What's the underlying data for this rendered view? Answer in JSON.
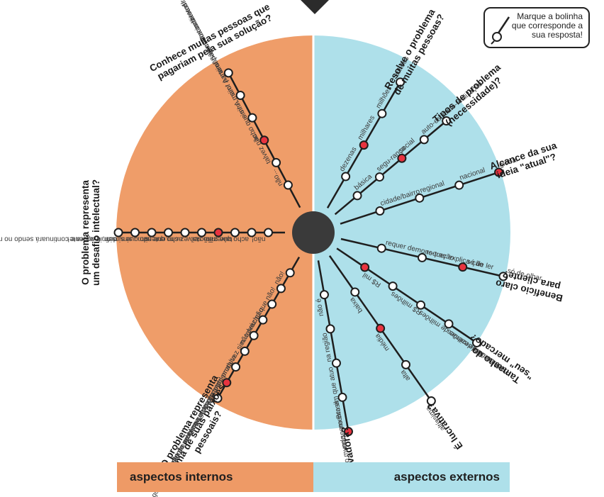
{
  "instruction_box": {
    "text": "Marque a bolinha que corresponde a sua resposta!",
    "icon": "pen-icon"
  },
  "footer": {
    "left": "aspectos internos",
    "right": "aspectos externos"
  },
  "colors": {
    "internal": "#ef9d69",
    "external": "#aee0ea",
    "hub": "#3a3a3a",
    "marked": "#e8333f",
    "line": "#1e1e1e"
  },
  "spokes": [
    {
      "question": [
        "Conhece muitas pessoas que",
        "pagariam pela sua solução?"
      ],
      "options": [
        "não...",
        "talvez não...",
        "acho que sim...",
        "sim! A maior parte são contatos indiretos!",
        "sim! A maior parte são contatos diretos!",
        "sim! São contatos diretos!"
      ],
      "marked": 2
    },
    {
      "question": [
        "Resolve o problema",
        "de muitas pessoas?"
      ],
      "options": [
        "dezenas",
        "milhares",
        "milhões",
        "bilhões"
      ],
      "marked": 1
    },
    {
      "question": [
        "Tipos de problema",
        "(necessidade)?"
      ],
      "options": [
        "básica",
        "segu-rança",
        "social",
        "auto-estima",
        "auto-realização"
      ],
      "marked": 2
    },
    {
      "question": [
        "Alcance da sua",
        "ideia \"atual\"?"
      ],
      "options": [
        "cidade/bairro",
        "regional",
        "nacional",
        "global"
      ],
      "marked": 3
    },
    {
      "question": [
        "Benefício claro",
        "para cliente?"
      ],
      "options": [
        "requer demons-tração",
        "requer explica-ção",
        "só de ler",
        "só de olhar"
      ],
      "marked": 2
    },
    {
      "question": [
        "Tamanho do",
        "\"seu\" mercado?"
      ],
      "options": [
        "R$ mil",
        "R$ milhões",
        "R$ dezenas de milhões",
        "R$ centenas de milhões",
        "R$ bilhões"
      ],
      "marked": 0
    },
    {
      "question": [
        "É lucrativa?"
      ],
      "options": [
        "baixa",
        "média",
        "alta",
        "altíssima"
      ],
      "marked": 1
    },
    {
      "question": [
        "É inovadora?"
      ],
      "options": [
        "não é",
        "na região",
        "no segmento em que atuo",
        "no Brasil",
        "no mundo"
      ],
      "marked": 4
    },
    {
      "question": [
        "O problema representa",
        "uma de suas paixões",
        "pessoais?"
      ],
      "options": [
        "não!",
        "acho que não!",
        "talvez não...",
        "não sei...",
        "talvez sim...",
        "não do problema, mas gosto do produto...",
        "gosto do produto e acho que gosto do problema",
        "gosto do problema e do produto",
        "tenho certeza que sim!"
      ],
      "marked": 7
    },
    {
      "question": [
        "O problema representa",
        "um desafio intelectual?"
      ],
      "options": [
        "não!",
        "acho que não",
        "talvez não...",
        "não sei...",
        "talvez sim...",
        "acho que sim...",
        "entendo que sim...",
        "sim...",
        "sim, definitivamente!",
        "sim, é agora e continuará sendo no médio/longo prazo!"
      ],
      "marked": 3
    }
  ]
}
